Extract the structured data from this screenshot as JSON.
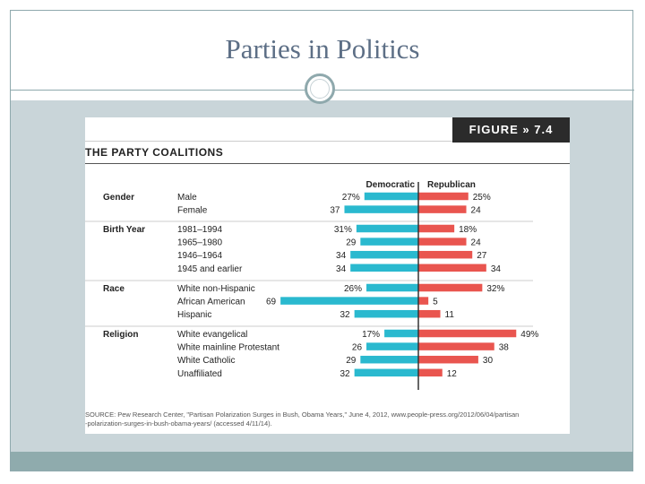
{
  "slide": {
    "title": "Parties in Politics"
  },
  "figure": {
    "label": "FIGURE » 7.4",
    "source_line1": "SOURCE: Pew Research Center, \"Partisan Polarization Surges in Bush, Obama Years,\" June 4, 2012, www.people-press.org/2012/06/04/partisan",
    "source_line2": "-polarization-surges-in-bush-obama-years/ (accessed 4/11/14)."
  },
  "colors": {
    "democratic": "#2ab9cf",
    "republican": "#e9554f",
    "axis": "#333333",
    "separator": "#cccccc"
  },
  "chart_data": {
    "type": "bar",
    "title": "THE PARTY COALITIONS",
    "series": [
      {
        "name": "Democratic",
        "direction": "left"
      },
      {
        "name": "Republican",
        "direction": "right"
      }
    ],
    "groups": [
      {
        "name": "Gender",
        "rows": [
          {
            "label": "Male",
            "dem": 27,
            "rep": 25,
            "dem_text": "27%",
            "rep_text": "25%"
          },
          {
            "label": "Female",
            "dem": 37,
            "rep": 24,
            "dem_text": "37",
            "rep_text": "24"
          }
        ]
      },
      {
        "name": "Birth Year",
        "rows": [
          {
            "label": "1981–1994",
            "dem": 31,
            "rep": 18,
            "dem_text": "31%",
            "rep_text": "18%"
          },
          {
            "label": "1965–1980",
            "dem": 29,
            "rep": 24,
            "dem_text": "29",
            "rep_text": "24"
          },
          {
            "label": "1946–1964",
            "dem": 34,
            "rep": 27,
            "dem_text": "34",
            "rep_text": "27"
          },
          {
            "label": "1945 and earlier",
            "dem": 34,
            "rep": 34,
            "dem_text": "34",
            "rep_text": "34"
          }
        ]
      },
      {
        "name": "Race",
        "rows": [
          {
            "label": "White non-Hispanic",
            "dem": 26,
            "rep": 32,
            "dem_text": "26%",
            "rep_text": "32%"
          },
          {
            "label": "African American",
            "dem": 69,
            "rep": 5,
            "dem_text": "69",
            "rep_text": "5"
          },
          {
            "label": "Hispanic",
            "dem": 32,
            "rep": 11,
            "dem_text": "32",
            "rep_text": "11"
          }
        ]
      },
      {
        "name": "Religion",
        "rows": [
          {
            "label": "White evangelical",
            "dem": 17,
            "rep": 49,
            "dem_text": "17%",
            "rep_text": "49%"
          },
          {
            "label": "White mainline Protestant",
            "dem": 26,
            "rep": 38,
            "dem_text": "26",
            "rep_text": "38"
          },
          {
            "label": "White Catholic",
            "dem": 29,
            "rep": 30,
            "dem_text": "29",
            "rep_text": "30"
          },
          {
            "label": "Unaffiliated",
            "dem": 32,
            "rep": 12,
            "dem_text": "32",
            "rep_text": "12"
          }
        ]
      }
    ]
  }
}
